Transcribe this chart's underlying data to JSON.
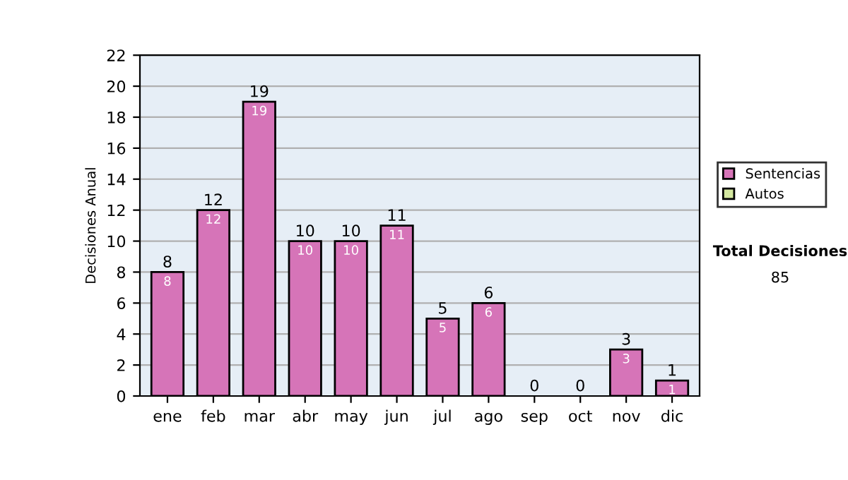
{
  "chart_data": {
    "type": "bar",
    "stacked": true,
    "ylabel": "Decisiones Anual",
    "categories": [
      "ene",
      "feb",
      "mar",
      "abr",
      "may",
      "jun",
      "jul",
      "ago",
      "sep",
      "oct",
      "nov",
      "dic"
    ],
    "series": [
      {
        "name": "Sentencias",
        "color": "#d674b8",
        "values": [
          8,
          12,
          19,
          10,
          10,
          11,
          5,
          6,
          0,
          0,
          3,
          1
        ],
        "value_labels": [
          "8",
          "12",
          "19",
          "10",
          "10",
          "11",
          "5",
          "6",
          null,
          null,
          "3",
          "1"
        ]
      },
      {
        "name": "Autos",
        "color": "#d4e8a0",
        "values": [
          0,
          0,
          0,
          0,
          0,
          0,
          0,
          0,
          0,
          0,
          0,
          0
        ]
      }
    ],
    "totals": [
      "8",
      "12",
      "19",
      "10",
      "10",
      "11",
      "5",
      "6",
      "0",
      "0",
      "3",
      "1"
    ],
    "ylim": [
      0,
      22
    ],
    "yticks": [
      0,
      2,
      4,
      6,
      8,
      10,
      12,
      14,
      16,
      18,
      20,
      22
    ],
    "grid": "y",
    "legend": "right",
    "annotations": [
      "Total Decisiones",
      "85"
    ]
  }
}
